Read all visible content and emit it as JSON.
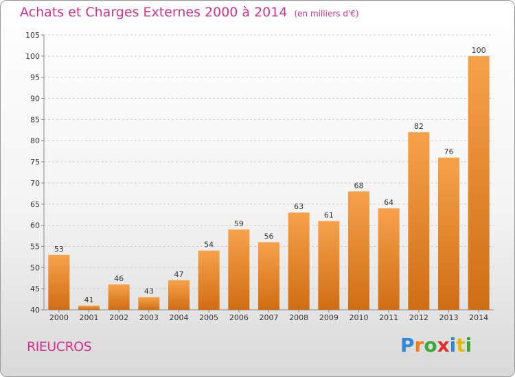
{
  "title": "Achats et Charges Externes 2000 à 2014",
  "unit": "(en milliers d'€)",
  "place": "RIEUCROS",
  "logo": {
    "letters": [
      "P",
      "r",
      "o",
      "x",
      "i",
      "t",
      "i"
    ],
    "colors": [
      "#2f8ad6",
      "#f07d1a",
      "#3aa63a",
      "#e0302a",
      "#2f8ad6",
      "#e6b800",
      "#3aa63a"
    ]
  },
  "colors": {
    "title": "#d0338a",
    "bar_top": "#f6a24a",
    "bar_bottom": "#cf6d14",
    "grid": "#cccccc",
    "axis_text": "#333333"
  },
  "chart_data": {
    "type": "bar",
    "categories": [
      "2000",
      "2001",
      "2002",
      "2003",
      "2004",
      "2005",
      "2006",
      "2007",
      "2008",
      "2009",
      "2010",
      "2011",
      "2012",
      "2013",
      "2014"
    ],
    "values": [
      53,
      41,
      46,
      43,
      47,
      54,
      59,
      56,
      63,
      61,
      68,
      64,
      82,
      76,
      100
    ],
    "title": "Achats et Charges Externes 2000 à 2014",
    "ylim": [
      40,
      105
    ],
    "yticks": [
      40,
      45,
      50,
      55,
      60,
      65,
      70,
      75,
      80,
      85,
      90,
      95,
      100,
      105
    ],
    "grid": true,
    "data_labels": true
  }
}
